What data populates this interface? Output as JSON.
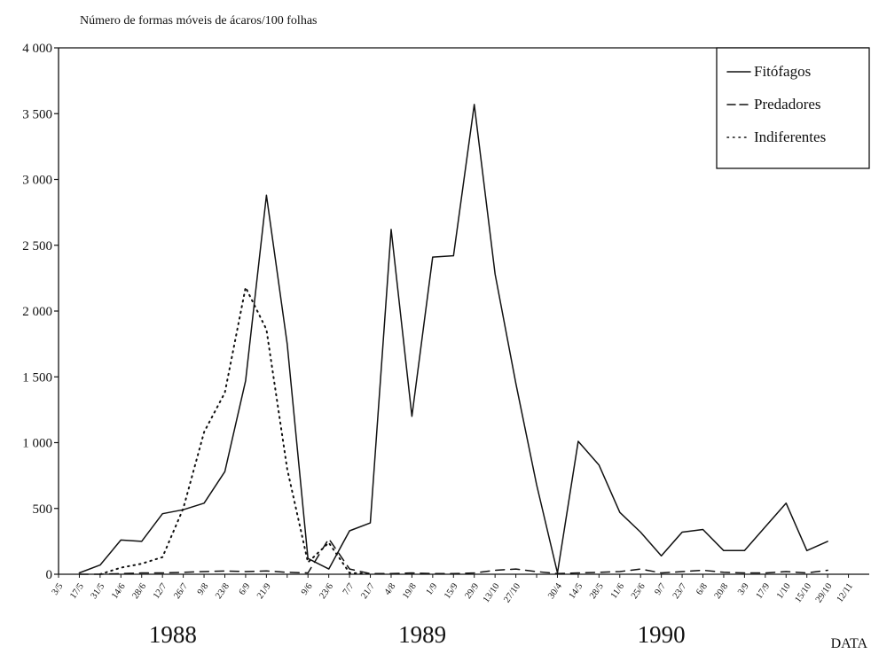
{
  "chart_data": {
    "type": "line",
    "title": "Número de formas móveis de ácaros/100 folhas",
    "xlabel": "DATA",
    "ylim": [
      0,
      4000
    ],
    "yticks": [
      0,
      500,
      1000,
      1500,
      2000,
      2500,
      3000,
      3500,
      4000
    ],
    "ytick_labels": [
      "0",
      "500",
      "1 000",
      "1 500",
      "2 000",
      "2 500",
      "3 000",
      "3 500",
      "4 000"
    ],
    "x_labels": [
      "3/5",
      "17/5",
      "31/5",
      "14/6",
      "28/6",
      "12/7",
      "26/7",
      "9/8",
      "23/8",
      "6/9",
      "21/9",
      "",
      "9/6",
      "23/6",
      "7/7",
      "21/7",
      "4/8",
      "19/8",
      "1/9",
      "15/9",
      "29/9",
      "13/10",
      "27/10",
      "",
      "30/4",
      "14/5",
      "28/5",
      "11/6",
      "25/6",
      "9/7",
      "23/7",
      "6/8",
      "20/8",
      "3/9",
      "17/9",
      "1/10",
      "15/10",
      "29/10",
      "12/11"
    ],
    "year_labels": [
      {
        "label": "1988",
        "at_index": 5.5
      },
      {
        "label": "1989",
        "at_index": 17.5
      },
      {
        "label": "1990",
        "at_index": 29.0
      }
    ],
    "legend": {
      "position": "top-right",
      "entries": [
        "Fitófagos",
        "Predadores",
        "Indiferentes"
      ]
    },
    "series": [
      {
        "name": "Fitófagos",
        "style": "solid",
        "points": [
          [
            1,
            10
          ],
          [
            2,
            70
          ],
          [
            3,
            260
          ],
          [
            4,
            250
          ],
          [
            5,
            460
          ],
          [
            6,
            490
          ],
          [
            7,
            540
          ],
          [
            8,
            780
          ],
          [
            9,
            1470
          ],
          [
            10,
            2880
          ],
          [
            11,
            1750
          ],
          [
            12,
            120
          ],
          [
            13,
            40
          ],
          [
            14,
            330
          ],
          [
            15,
            390
          ],
          [
            16,
            2620
          ],
          [
            17,
            1200
          ],
          [
            18,
            2410
          ],
          [
            19,
            2420
          ],
          [
            20,
            3570
          ],
          [
            21,
            2280
          ],
          [
            22,
            1450
          ],
          [
            23,
            680
          ],
          [
            24,
            10
          ],
          [
            25,
            1010
          ],
          [
            26,
            830
          ],
          [
            27,
            470
          ],
          [
            28,
            320
          ],
          [
            29,
            140
          ],
          [
            30,
            320
          ],
          [
            31,
            340
          ],
          [
            32,
            180
          ],
          [
            33,
            180
          ],
          [
            34,
            360
          ],
          [
            35,
            540
          ],
          [
            36,
            180
          ],
          [
            37,
            250
          ]
        ]
      },
      {
        "name": "Predadores",
        "style": "dashed",
        "points": [
          [
            1,
            0
          ],
          [
            2,
            0
          ],
          [
            3,
            5
          ],
          [
            4,
            10
          ],
          [
            5,
            10
          ],
          [
            6,
            15
          ],
          [
            7,
            20
          ],
          [
            8,
            25
          ],
          [
            9,
            20
          ],
          [
            10,
            25
          ],
          [
            11,
            15
          ],
          [
            12,
            10
          ],
          [
            13,
            270
          ],
          [
            14,
            40
          ],
          [
            15,
            5
          ],
          [
            16,
            5
          ],
          [
            17,
            10
          ],
          [
            18,
            5
          ],
          [
            19,
            5
          ],
          [
            20,
            10
          ],
          [
            21,
            30
          ],
          [
            22,
            40
          ],
          [
            23,
            20
          ],
          [
            24,
            5
          ],
          [
            25,
            10
          ],
          [
            26,
            15
          ],
          [
            27,
            20
          ],
          [
            28,
            40
          ],
          [
            29,
            10
          ],
          [
            30,
            20
          ],
          [
            31,
            30
          ],
          [
            32,
            15
          ],
          [
            33,
            10
          ],
          [
            34,
            10
          ],
          [
            35,
            20
          ],
          [
            36,
            10
          ],
          [
            37,
            30
          ]
        ]
      },
      {
        "name": "Indiferentes",
        "style": "dotted",
        "points": [
          [
            2,
            0
          ],
          [
            3,
            50
          ],
          [
            4,
            80
          ],
          [
            5,
            130
          ],
          [
            6,
            500
          ],
          [
            7,
            1080
          ],
          [
            8,
            1380
          ],
          [
            9,
            2180
          ],
          [
            10,
            1860
          ],
          [
            11,
            800
          ],
          [
            12,
            90
          ],
          [
            13,
            240
          ],
          [
            14,
            10
          ],
          [
            15,
            5
          ]
        ]
      }
    ]
  }
}
